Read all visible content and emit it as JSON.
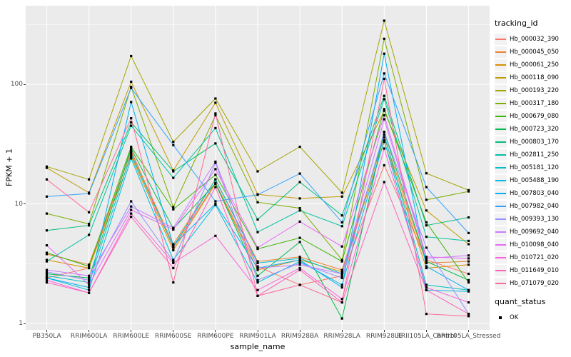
{
  "chart_data": {
    "type": "line",
    "title": "",
    "xlabel": "sample_name",
    "ylabel": "FPKM + 1",
    "yscale": "log10",
    "yticks": [
      1,
      10,
      100
    ],
    "ytick_labels": [
      "1",
      "10",
      "100"
    ],
    "ylim": [
      0.88,
      450
    ],
    "grid": "major-and-minor-horizontal, major-vertical",
    "legend_position": "right",
    "legend_title": "tracking_id",
    "panel_bg": "#EBEBEB",
    "grid_color": "#FFFFFF",
    "axis_text_color": "#4D4D4D",
    "marker": "black-square",
    "categories": [
      "PB350LA",
      "RRIM600LA",
      "RRIM600LE",
      "RRIM600SE",
      "RRIM600PE",
      "RRIM901LA",
      "RRIM928BA",
      "RRIM928LA",
      "RRIM928LE",
      "RRII105LA_Control",
      "RRII105LA_Stressed"
    ],
    "series": [
      {
        "name": "Hb_000032_390",
        "color": "#F8766D",
        "values": [
          2.4,
          2.9,
          28,
          4.3,
          15,
          3.0,
          2.1,
          2.5,
          21,
          3.4,
          2.6
        ]
      },
      {
        "name": "Hb_000045_050",
        "color": "#EA8331",
        "values": [
          3.8,
          3.1,
          27,
          4.6,
          16,
          3.3,
          3.6,
          2.8,
          36,
          3.2,
          3.3
        ]
      },
      {
        "name": "Hb_000061_250",
        "color": "#D89000",
        "values": [
          3.4,
          2.9,
          25,
          4.1,
          14.7,
          2.8,
          3.4,
          2.7,
          33,
          2.9,
          3.1
        ]
      },
      {
        "name": "Hb_000118_090",
        "color": "#C09B00",
        "values": [
          20,
          12.4,
          105,
          19,
          70,
          12,
          11.1,
          11.5,
          60,
          8.8,
          4.6
        ]
      },
      {
        "name": "Hb_000193_220",
        "color": "#A3A500",
        "values": [
          20.5,
          16,
          172,
          33,
          76,
          18.7,
          30,
          12.4,
          340,
          18,
          13
        ]
      },
      {
        "name": "Hb_000317_180",
        "color": "#7CAE00",
        "values": [
          8.3,
          6.8,
          95,
          9.4,
          55,
          10.3,
          9.2,
          3.4,
          240,
          10.8,
          12.7
        ]
      },
      {
        "name": "Hb_000679_080",
        "color": "#39B600",
        "values": [
          3.9,
          3.0,
          30,
          9.0,
          17.5,
          4.2,
          5.2,
          3.3,
          62,
          7.0,
          2.2
        ]
      },
      {
        "name": "Hb_000723_320",
        "color": "#00BB4E",
        "values": [
          2.6,
          2.4,
          29,
          6.2,
          14.8,
          2.5,
          4.8,
          1.1,
          40,
          3.3,
          2.3
        ]
      },
      {
        "name": "Hb_000803_170",
        "color": "#00BF7D",
        "values": [
          6.0,
          6.6,
          48,
          18.7,
          32,
          7.4,
          15.2,
          8.0,
          80,
          6.6,
          7.7
        ]
      },
      {
        "name": "Hb_002811_250",
        "color": "#00C1A3",
        "values": [
          3.3,
          5.5,
          45,
          16.5,
          43,
          5.8,
          8.8,
          6.5,
          75,
          5.3,
          4.9
        ]
      },
      {
        "name": "Hb_005181_120",
        "color": "#00BFC4",
        "values": [
          2.5,
          2.2,
          26,
          4.4,
          16,
          3.2,
          3.5,
          2.6,
          38,
          2.1,
          1.9
        ]
      },
      {
        "name": "Hb_005488_190",
        "color": "#00BAE0",
        "values": [
          2.4,
          1.9,
          24,
          3.4,
          9.8,
          2.2,
          3.3,
          2.1,
          34,
          1.9,
          1.85
        ]
      },
      {
        "name": "Hb_007803_040",
        "color": "#00B0F6",
        "values": [
          2.4,
          2.0,
          71,
          4.5,
          10.0,
          2.9,
          3.4,
          2.0,
          180,
          3.0,
          1.9
        ]
      },
      {
        "name": "Hb_007982_040",
        "color": "#35A2FF",
        "values": [
          11.5,
          12.2,
          93,
          31,
          10.5,
          11.9,
          17.9,
          7.0,
          123,
          13.8,
          5.7
        ]
      },
      {
        "name": "Hb_009393_130",
        "color": "#9590FF",
        "values": [
          2.7,
          2.3,
          10.5,
          3.3,
          22,
          2.3,
          3.2,
          2.4,
          40,
          4.3,
          1.2
        ]
      },
      {
        "name": "Hb_009692_040",
        "color": "#C77CFF",
        "values": [
          2.8,
          2.5,
          9.5,
          6.3,
          22.5,
          2.9,
          3.1,
          2.6,
          51,
          3.5,
          3.7
        ]
      },
      {
        "name": "Hb_010098_040",
        "color": "#E76BF3",
        "values": [
          4.5,
          2.1,
          8.9,
          6.1,
          19.5,
          4.3,
          7.1,
          4.4,
          55,
          3.6,
          3.5
        ]
      },
      {
        "name": "Hb_010721_020",
        "color": "#FA62DB",
        "values": [
          2.3,
          1.8,
          8.3,
          3.2,
          5.4,
          1.9,
          2.9,
          1.6,
          29,
          2.0,
          1.5
        ]
      },
      {
        "name": "Hb_011649_010",
        "color": "#FF62BC",
        "values": [
          2.2,
          1.8,
          7.8,
          2.9,
          13.8,
          1.7,
          2.8,
          1.5,
          15.2,
          1.9,
          1.2
        ]
      },
      {
        "name": "Hb_071079_020",
        "color": "#FF6A98",
        "values": [
          16,
          8.5,
          52,
          2.2,
          57,
          1.7,
          2.1,
          1.5,
          111,
          1.2,
          1.15
        ]
      }
    ],
    "point_legend": {
      "title": "quant_status",
      "items": [
        {
          "label": "OK",
          "marker": "black-square"
        }
      ]
    }
  }
}
